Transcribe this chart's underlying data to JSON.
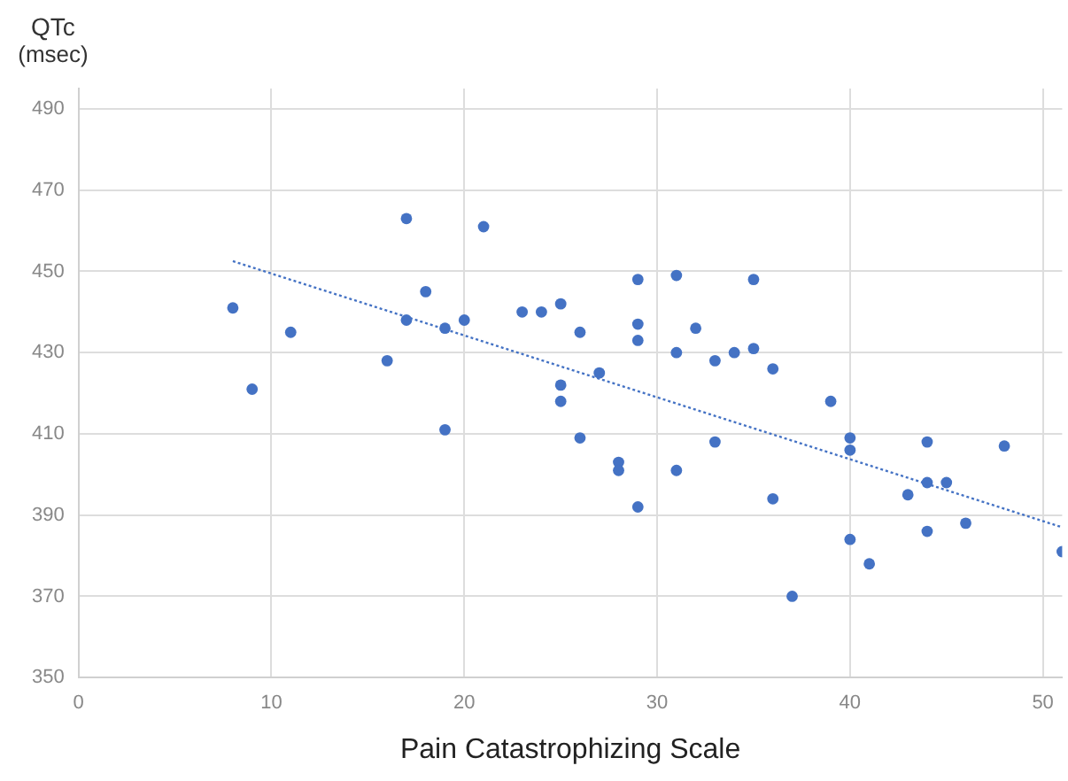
{
  "chart_data": {
    "type": "scatter",
    "xlabel": "Pain Catastrophizing Scale",
    "ylabel": "QTc (msec)",
    "marker": "circle",
    "grid": true,
    "xlim": [
      0,
      51
    ],
    "xticks": [
      0,
      10,
      20,
      30,
      40,
      50
    ],
    "ylim": [
      350,
      495
    ],
    "yticks": [
      350,
      370,
      390,
      410,
      430,
      450,
      470,
      490
    ],
    "series": [
      {
        "color": "#4472c4",
        "x": [
          8,
          9,
          11,
          16,
          17,
          17,
          18,
          19,
          19,
          20,
          21,
          23,
          24,
          25,
          25,
          25,
          26,
          26,
          27,
          28,
          28,
          29,
          29,
          29,
          29,
          31,
          31,
          31,
          32,
          33,
          33,
          34,
          35,
          35,
          36,
          36,
          37,
          39,
          40,
          40,
          40,
          41,
          43,
          44,
          44,
          44,
          45,
          46,
          48,
          51
        ],
        "values": [
          441,
          421,
          435,
          428,
          463,
          438,
          445,
          436,
          411,
          438,
          461,
          440,
          440,
          442,
          422,
          418,
          435,
          409,
          425,
          403,
          401,
          448,
          437,
          433,
          392,
          449,
          430,
          401,
          436,
          428,
          408,
          430,
          448,
          431,
          426,
          394,
          370,
          418,
          409,
          406,
          384,
          378,
          395,
          408,
          398,
          386,
          398,
          388,
          407,
          381
        ]
      },
      {
        "type": "line",
        "color": "#4472c4",
        "line_style": "dotted",
        "marker": "none",
        "x": [
          8,
          51
        ],
        "values": [
          452.5,
          387
        ]
      }
    ]
  }
}
